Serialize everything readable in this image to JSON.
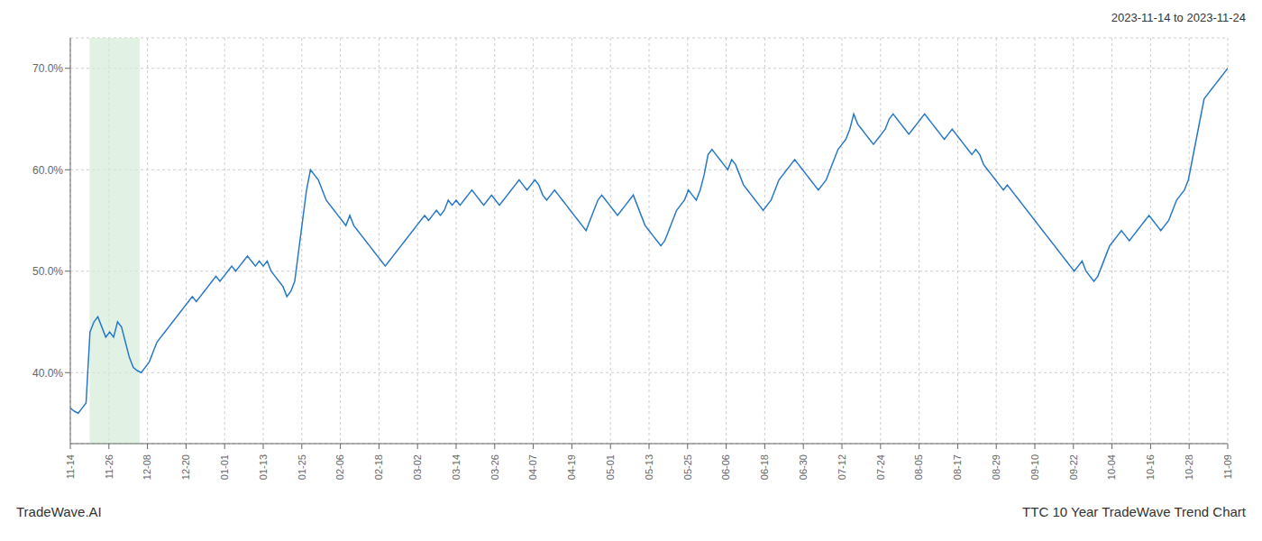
{
  "chart_data": {
    "type": "line",
    "title": "2023-11-14 to 2023-11-24",
    "footer_left": "TradeWave.AI",
    "footer_right": "TTC 10 Year TradeWave Trend Chart",
    "color": "#2878c8",
    "grid": true,
    "xlim": [
      0,
      30
    ],
    "xticks": [
      {
        "value": 0,
        "label": "11-14"
      },
      {
        "value": 1,
        "label": "11-26"
      },
      {
        "value": 2,
        "label": "12-08"
      },
      {
        "value": 3,
        "label": "12-20"
      },
      {
        "value": 4,
        "label": "01-01"
      },
      {
        "value": 5,
        "label": "01-13"
      },
      {
        "value": 6,
        "label": "01-25"
      },
      {
        "value": 7,
        "label": "02-06"
      },
      {
        "value": 8,
        "label": "02-18"
      },
      {
        "value": 9,
        "label": "03-02"
      },
      {
        "value": 10,
        "label": "03-14"
      },
      {
        "value": 11,
        "label": "03-26"
      },
      {
        "value": 12,
        "label": "04-07"
      },
      {
        "value": 13,
        "label": "04-19"
      },
      {
        "value": 14,
        "label": "05-01"
      },
      {
        "value": 15,
        "label": "05-13"
      },
      {
        "value": 16,
        "label": "05-25"
      },
      {
        "value": 17,
        "label": "06-06"
      },
      {
        "value": 18,
        "label": "06-18"
      },
      {
        "value": 19,
        "label": "06-30"
      },
      {
        "value": 20,
        "label": "07-12"
      },
      {
        "value": 21,
        "label": "07-24"
      },
      {
        "value": 22,
        "label": "08-05"
      },
      {
        "value": 23,
        "label": "08-17"
      },
      {
        "value": 24,
        "label": "08-29"
      },
      {
        "value": 25,
        "label": "09-10"
      },
      {
        "value": 26,
        "label": "09-22"
      },
      {
        "value": 27,
        "label": "10-04"
      },
      {
        "value": 28,
        "label": "10-16"
      },
      {
        "value": 29,
        "label": "10-28"
      },
      {
        "value": 30,
        "label": "11-09"
      }
    ],
    "ylim": [
      33,
      73
    ],
    "yticks": [
      {
        "value": 40,
        "label": "40.0%"
      },
      {
        "value": 50,
        "label": "50.0%"
      },
      {
        "value": 60,
        "label": "60.0%"
      },
      {
        "value": 70,
        "label": "70.0%"
      }
    ],
    "highlight": {
      "x": [
        0.5,
        1.8
      ],
      "color": "#d4edda"
    },
    "values": [
      36.5,
      36.2,
      36.0,
      36.5,
      37.0,
      44.0,
      45.0,
      45.5,
      44.5,
      43.5,
      44.0,
      43.5,
      45.0,
      44.5,
      43.0,
      41.5,
      40.5,
      40.2,
      40.0,
      40.5,
      41.0,
      42.0,
      43.0,
      43.5,
      44.0,
      44.5,
      45.0,
      45.5,
      46.0,
      46.5,
      47.0,
      47.5,
      47.0,
      47.5,
      48.0,
      48.5,
      49.0,
      49.5,
      49.0,
      49.5,
      50.0,
      50.5,
      50.0,
      50.5,
      51.0,
      51.5,
      51.0,
      50.5,
      51.0,
      50.5,
      51.0,
      50.0,
      49.5,
      49.0,
      48.5,
      47.5,
      48.0,
      49.0,
      52.0,
      55.0,
      58.0,
      60.0,
      59.5,
      59.0,
      58.0,
      57.0,
      56.5,
      56.0,
      55.5,
      55.0,
      54.5,
      55.5,
      54.5,
      54.0,
      53.5,
      53.0,
      52.5,
      52.0,
      51.5,
      51.0,
      50.5,
      51.0,
      51.5,
      52.0,
      52.5,
      53.0,
      53.5,
      54.0,
      54.5,
      55.0,
      55.5,
      55.0,
      55.5,
      56.0,
      55.5,
      56.0,
      57.0,
      56.5,
      57.0,
      56.5,
      57.0,
      57.5,
      58.0,
      57.5,
      57.0,
      56.5,
      57.0,
      57.5,
      57.0,
      56.5,
      57.0,
      57.5,
      58.0,
      58.5,
      59.0,
      58.5,
      58.0,
      58.5,
      59.0,
      58.5,
      57.5,
      57.0,
      57.5,
      58.0,
      57.5,
      57.0,
      56.5,
      56.0,
      55.5,
      55.0,
      54.5,
      54.0,
      55.0,
      56.0,
      57.0,
      57.5,
      57.0,
      56.5,
      56.0,
      55.5,
      56.0,
      56.5,
      57.0,
      57.5,
      56.5,
      55.5,
      54.5,
      54.0,
      53.5,
      53.0,
      52.5,
      53.0,
      54.0,
      55.0,
      56.0,
      56.5,
      57.0,
      58.0,
      57.5,
      57.0,
      58.0,
      59.5,
      61.5,
      62.0,
      61.5,
      61.0,
      60.5,
      60.0,
      61.0,
      60.5,
      59.5,
      58.5,
      58.0,
      57.5,
      57.0,
      56.5,
      56.0,
      56.5,
      57.0,
      58.0,
      59.0,
      59.5,
      60.0,
      60.5,
      61.0,
      60.5,
      60.0,
      59.5,
      59.0,
      58.5,
      58.0,
      58.5,
      59.0,
      60.0,
      61.0,
      62.0,
      62.5,
      63.0,
      64.0,
      65.5,
      64.5,
      64.0,
      63.5,
      63.0,
      62.5,
      63.0,
      63.5,
      64.0,
      65.0,
      65.5,
      65.0,
      64.5,
      64.0,
      63.5,
      64.0,
      64.5,
      65.0,
      65.5,
      65.0,
      64.5,
      64.0,
      63.5,
      63.0,
      63.5,
      64.0,
      63.5,
      63.0,
      62.5,
      62.0,
      61.5,
      62.0,
      61.5,
      60.5,
      60.0,
      59.5,
      59.0,
      58.5,
      58.0,
      58.5,
      58.0,
      57.5,
      57.0,
      56.5,
      56.0,
      55.5,
      55.0,
      54.5,
      54.0,
      53.5,
      53.0,
      52.5,
      52.0,
      51.5,
      51.0,
      50.5,
      50.0,
      50.5,
      51.0,
      50.0,
      49.5,
      49.0,
      49.5,
      50.5,
      51.5,
      52.5,
      53.0,
      53.5,
      54.0,
      53.5,
      53.0,
      53.5,
      54.0,
      54.5,
      55.0,
      55.5,
      55.0,
      54.5,
      54.0,
      54.5,
      55.0,
      56.0,
      57.0,
      57.5,
      58.0,
      59.0,
      61.0,
      63.0,
      65.0,
      67.0,
      67.5,
      68.0,
      68.5,
      69.0,
      69.5,
      70.0
    ]
  }
}
